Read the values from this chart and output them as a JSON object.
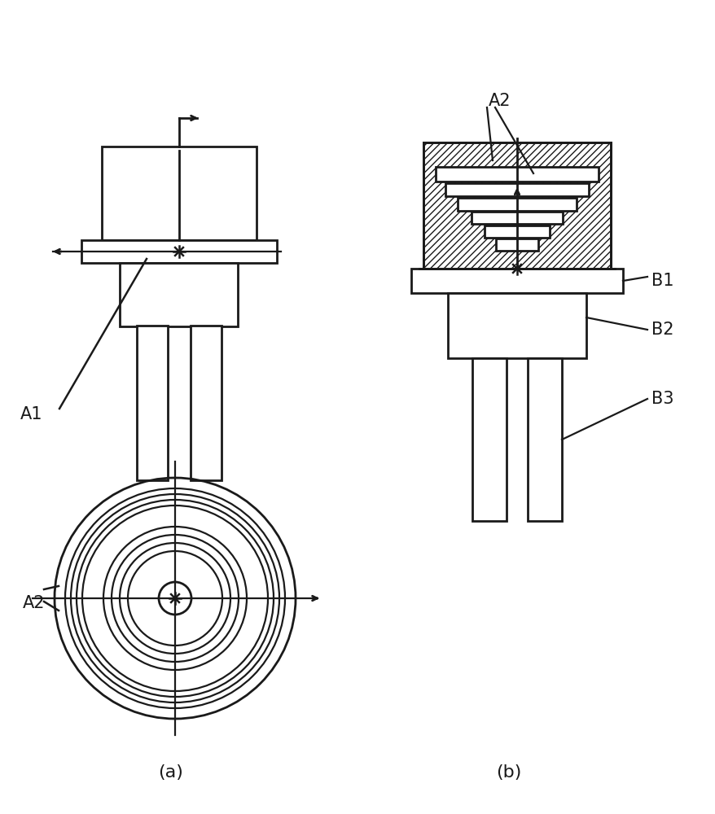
{
  "bg_color": "#ffffff",
  "line_color": "#1a1a1a",
  "label_a1": "A1",
  "label_a2_bottom": "A2",
  "label_a2_top": "A2",
  "label_b1": "B1",
  "label_b2": "B2",
  "label_b3": "B3",
  "caption_a": "(a)",
  "caption_b": "(b)",
  "font_size": 15
}
